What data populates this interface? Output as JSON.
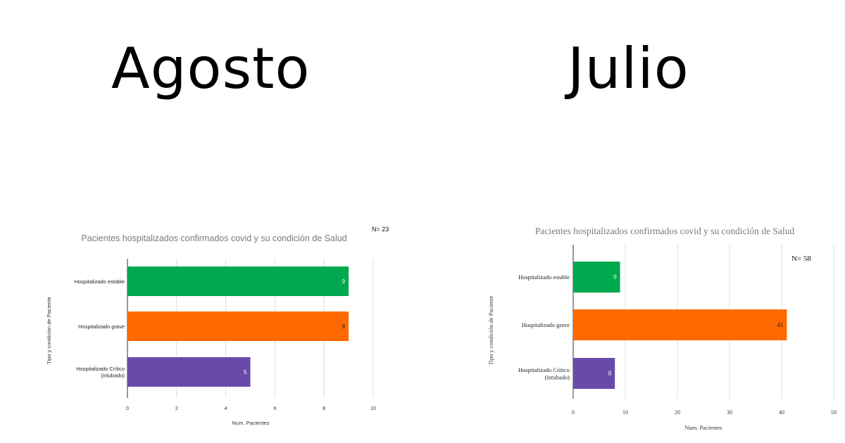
{
  "headings": {
    "left": "Agosto",
    "right": "Julio"
  },
  "chart_data": [
    {
      "type": "bar",
      "orientation": "horizontal",
      "title": "Pacientes hospitalizados confirmados covid y su condición de Salud",
      "annotation": "N= 23",
      "xlabel": "Num. Pacientes",
      "ylabel": "Tipo y condición de Paciente",
      "categories": [
        "Hospitalizado estable",
        "Hospitalizado grave",
        "Hospitalizado Crítico (intubado)"
      ],
      "values": [
        9,
        9,
        5
      ],
      "colors": [
        "#00a84f",
        "#ff6a00",
        "#6a4aa8"
      ],
      "label_colors": [
        "#ffffff",
        "#222222",
        "#ffffff"
      ],
      "xlim": [
        0,
        10
      ],
      "xticks": [
        0,
        2,
        4,
        6,
        8,
        10
      ],
      "grid": true,
      "legend": "none"
    },
    {
      "type": "bar",
      "orientation": "horizontal",
      "title": "Pacientes hospitalizados confirmados covid y su condición de Salud",
      "annotation": "N= 58",
      "xlabel": "Num. Pacientes",
      "ylabel": "Tipo y condición de Paciente",
      "categories": [
        "Hospitalizado estable",
        "Hospitalizado grave",
        "Hospitalizado Crítico (intubado)"
      ],
      "values": [
        9,
        41,
        8
      ],
      "colors": [
        "#00a84f",
        "#ff6a00",
        "#6a4aa8"
      ],
      "label_colors": [
        "#ffffff",
        "#222222",
        "#ffffff"
      ],
      "xlim": [
        0,
        50
      ],
      "xticks": [
        0,
        10,
        20,
        30,
        40,
        50
      ],
      "grid": true,
      "legend": "none"
    }
  ]
}
